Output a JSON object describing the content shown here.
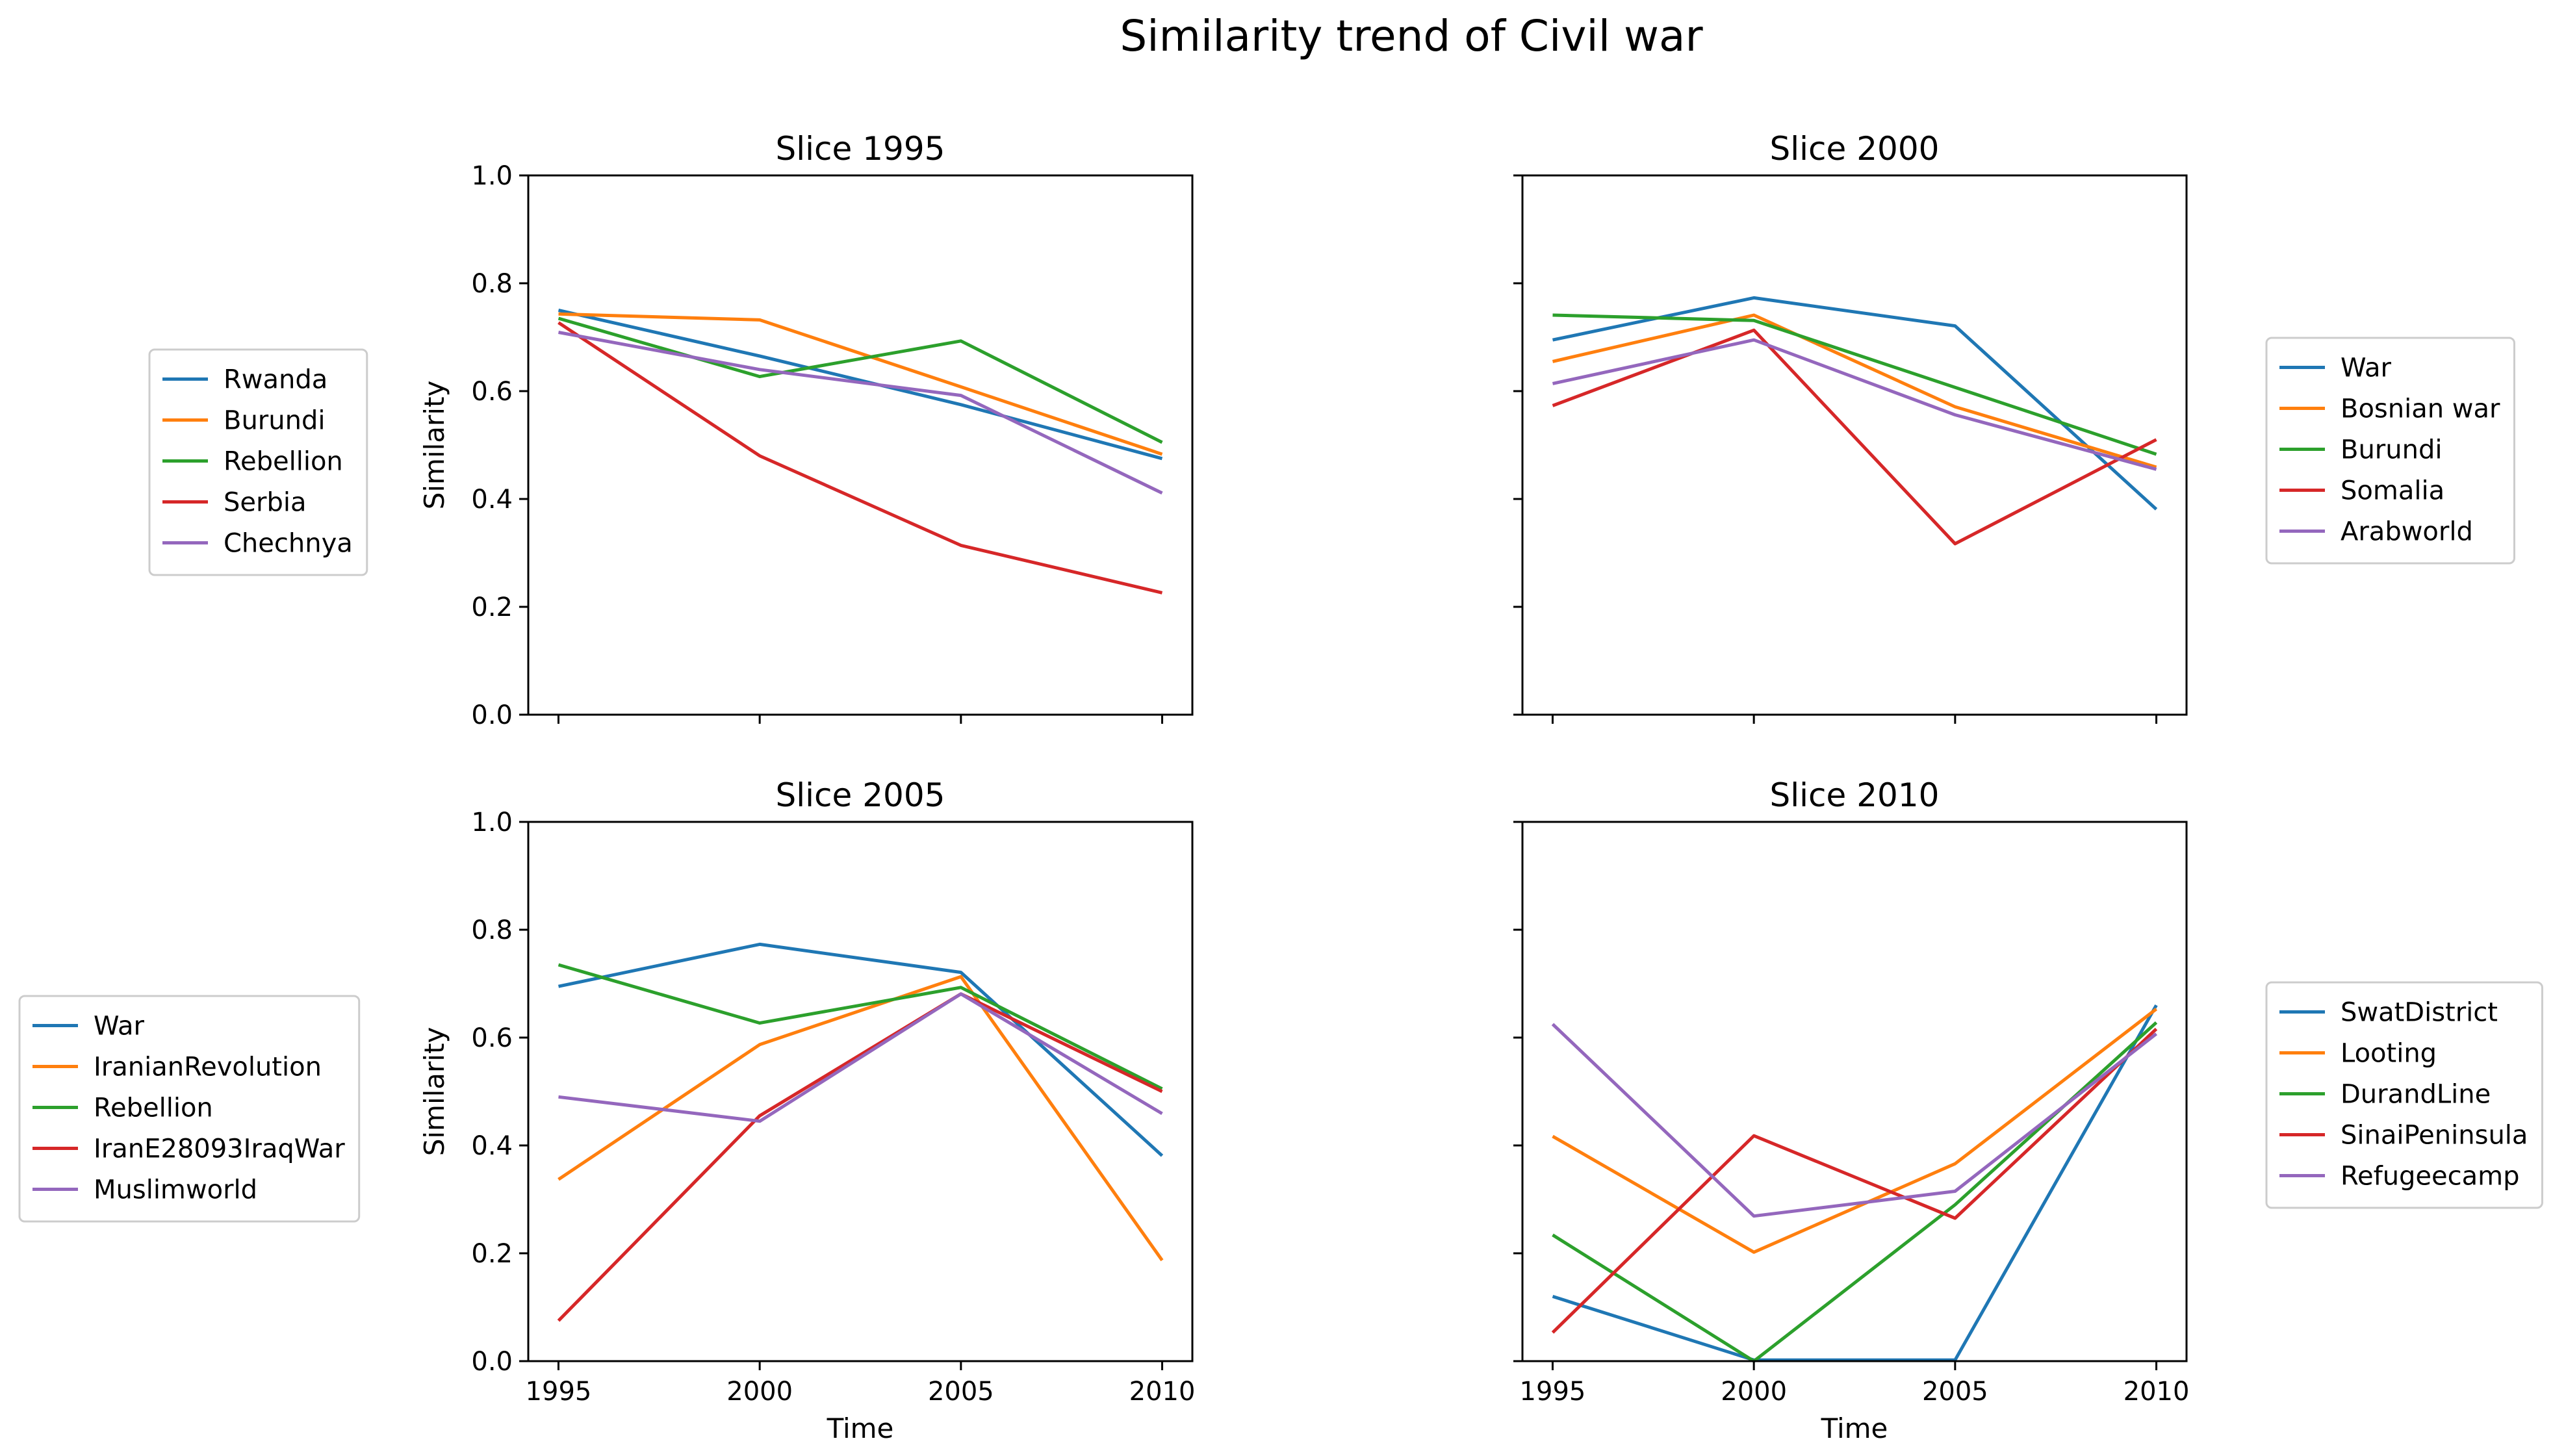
{
  "suptitle": "Similarity trend of Civil war",
  "colors": [
    "#1f77b4",
    "#ff7f0e",
    "#2ca02c",
    "#d62728",
    "#9467bd"
  ],
  "chart_data": [
    {
      "type": "line",
      "title": "Slice 1995",
      "xlabel": "",
      "ylabel": "Similarity",
      "x": [
        1995,
        2000,
        2005,
        2010
      ],
      "xlim": [
        1995,
        2010
      ],
      "ylim": [
        0.0,
        1.0
      ],
      "y_ticks": [
        "0.0",
        "0.2",
        "0.4",
        "0.6",
        "0.8",
        "1.0"
      ],
      "x_ticks": [],
      "legend_position": "left",
      "series": [
        {
          "name": "Rwanda",
          "values": [
            0.75,
            0.665,
            0.575,
            0.475
          ]
        },
        {
          "name": "Burundi",
          "values": [
            0.743,
            0.732,
            0.608,
            0.483
          ]
        },
        {
          "name": "Rebellion",
          "values": [
            0.735,
            0.627,
            0.693,
            0.505
          ]
        },
        {
          "name": "Serbia",
          "values": [
            0.727,
            0.48,
            0.314,
            0.226
          ]
        },
        {
          "name": "Chechnya",
          "values": [
            0.709,
            0.64,
            0.592,
            0.411
          ]
        }
      ]
    },
    {
      "type": "line",
      "title": "Slice 2000",
      "xlabel": "",
      "ylabel": "",
      "x": [
        1995,
        2000,
        2005,
        2010
      ],
      "xlim": [
        1995,
        2010
      ],
      "ylim": [
        0.0,
        1.0
      ],
      "y_ticks": [],
      "x_ticks": [],
      "legend_position": "right",
      "series": [
        {
          "name": "War",
          "values": [
            0.695,
            0.773,
            0.721,
            0.381
          ]
        },
        {
          "name": "Bosnian war",
          "values": [
            0.655,
            0.741,
            0.571,
            0.459
          ]
        },
        {
          "name": "Burundi",
          "values": [
            0.741,
            0.731,
            0.607,
            0.483
          ]
        },
        {
          "name": "Somalia",
          "values": [
            0.573,
            0.713,
            0.317,
            0.51
          ]
        },
        {
          "name": "Arabworld",
          "values": [
            0.614,
            0.695,
            0.556,
            0.455
          ]
        }
      ]
    },
    {
      "type": "line",
      "title": "Slice 2005",
      "xlabel": "Time",
      "ylabel": "Similarity",
      "x": [
        1995,
        2000,
        2005,
        2010
      ],
      "xlim": [
        1995,
        2010
      ],
      "ylim": [
        0.0,
        1.0
      ],
      "y_ticks": [
        "0.0",
        "0.2",
        "0.4",
        "0.6",
        "0.8",
        "1.0"
      ],
      "x_ticks": [
        "1995",
        "2000",
        "2005",
        "2010"
      ],
      "legend_position": "left",
      "series": [
        {
          "name": "War",
          "values": [
            0.695,
            0.773,
            0.721,
            0.381
          ]
        },
        {
          "name": "IranianRevolution",
          "values": [
            0.337,
            0.587,
            0.713,
            0.187
          ]
        },
        {
          "name": "Rebellion",
          "values": [
            0.735,
            0.627,
            0.693,
            0.505
          ]
        },
        {
          "name": "IranE28093IraqWar",
          "values": [
            0.075,
            0.455,
            0.681,
            0.5
          ]
        },
        {
          "name": "Muslimworld",
          "values": [
            0.49,
            0.445,
            0.681,
            0.459
          ]
        }
      ]
    },
    {
      "type": "line",
      "title": "Slice 2010",
      "xlabel": "Time",
      "ylabel": "",
      "x": [
        1995,
        2000,
        2005,
        2010
      ],
      "xlim": [
        1995,
        2010
      ],
      "ylim": [
        0.0,
        1.0
      ],
      "y_ticks": [],
      "x_ticks": [
        "1995",
        "2000",
        "2005",
        "2010"
      ],
      "legend_position": "right",
      "series": [
        {
          "name": "SwatDistrict",
          "values": [
            0.12,
            0.002,
            0.002,
            0.66
          ]
        },
        {
          "name": "Looting",
          "values": [
            0.417,
            0.202,
            0.366,
            0.653
          ]
        },
        {
          "name": "DurandLine",
          "values": [
            0.234,
            0.0,
            0.29,
            0.628
          ]
        },
        {
          "name": "SinaiPeninsula",
          "values": [
            0.053,
            0.418,
            0.265,
            0.616
          ]
        },
        {
          "name": "Refugeecamp",
          "values": [
            0.625,
            0.269,
            0.315,
            0.607
          ]
        }
      ]
    }
  ]
}
